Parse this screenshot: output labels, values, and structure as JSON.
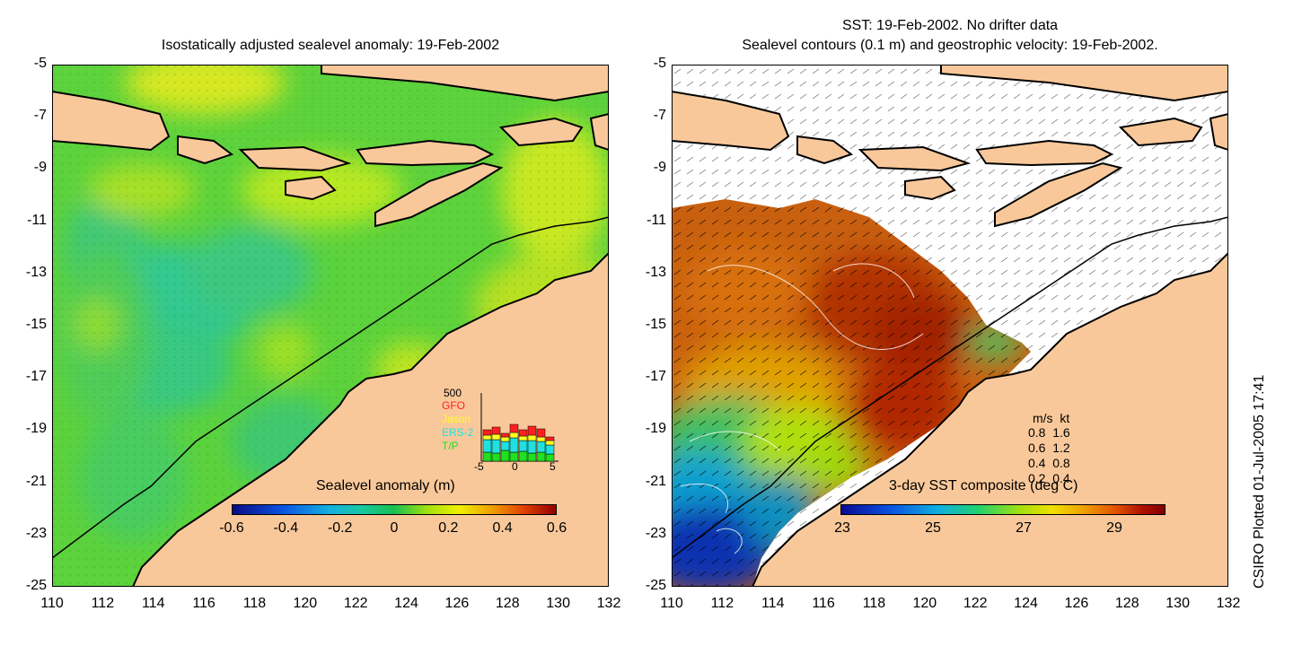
{
  "left_panel": {
    "title": "Isostatically adjusted sealevel anomaly: 19-Feb-2002",
    "colorbar": {
      "label": "Sealevel anomaly (m)",
      "ticks": [
        "-0.6",
        "-0.4",
        "-0.2",
        "0",
        "0.2",
        "0.4",
        "0.6"
      ],
      "colors": [
        "#0a0a80",
        "#0a3cd0",
        "#15a0e0",
        "#18c8b0",
        "#18c050",
        "#a0e010",
        "#f0f000",
        "#f0a000",
        "#e04000",
        "#900000"
      ]
    },
    "satellite_legend": {
      "max_label": "500",
      "entries": [
        {
          "name": "GFO",
          "color": "#ff2020"
        },
        {
          "name": "Jason",
          "color": "#ffff20"
        },
        {
          "name": "ERS-2",
          "color": "#20e0e0"
        },
        {
          "name": "T/P",
          "color": "#20e020"
        }
      ],
      "xticks": [
        "-5",
        "0",
        "5"
      ]
    }
  },
  "right_panel": {
    "title_line1": "SST: 19-Feb-2002. No drifter data",
    "title_line2": "Sealevel contours (0.1 m) and geostrophic velocity: 19-Feb-2002.",
    "colorbar": {
      "label": "3-day SST composite (deg C)",
      "ticks": [
        "23",
        "25",
        "27",
        "29"
      ],
      "colors": [
        "#0a0a90",
        "#0a50e0",
        "#10b0e0",
        "#20d070",
        "#a0e010",
        "#f0e000",
        "#f0a000",
        "#e05000",
        "#b01000",
        "#800000"
      ]
    },
    "velocity_legend": {
      "header": "m/s  kt",
      "rows": [
        "0.8  1.6",
        "0.6  1.2",
        "0.4  0.8",
        "0.2  0.4"
      ]
    }
  },
  "axes": {
    "y_ticks": [
      "-5",
      "-7",
      "-9",
      "-11",
      "-13",
      "-15",
      "-17",
      "-19",
      "-21",
      "-23",
      "-25"
    ],
    "x_ticks": [
      "110",
      "112",
      "114",
      "116",
      "118",
      "120",
      "122",
      "124",
      "126",
      "128",
      "130",
      "132"
    ]
  },
  "footer_credit": "CSIRO Plotted 01-Jul-2005 17:41",
  "colors": {
    "land": "#f9c89a",
    "ocean_base_left": "#5cd23c",
    "white_gap": "#ffffff"
  }
}
